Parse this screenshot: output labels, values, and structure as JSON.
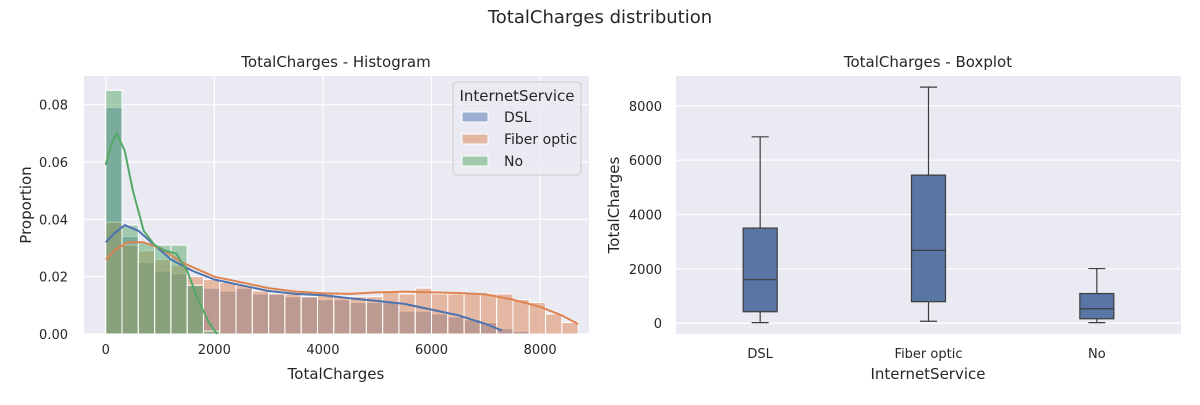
{
  "figure": {
    "title": "TotalCharges distribution"
  },
  "chart_data": [
    {
      "type": "histogram",
      "title": "TotalCharges - Histogram",
      "xlabel": "TotalCharges",
      "ylabel": "Proportion",
      "xlim": [
        -400,
        8900
      ],
      "ylim": [
        0,
        0.09
      ],
      "xticks": [
        0,
        2000,
        4000,
        6000,
        8000
      ],
      "yticks": [
        0.0,
        0.02,
        0.04,
        0.06,
        0.08
      ],
      "ytick_labels": [
        "0.00",
        "0.02",
        "0.04",
        "0.06",
        "0.08"
      ],
      "grid": true,
      "legend": {
        "title": "InternetService",
        "placement": "top-right",
        "entries": [
          "DSL",
          "Fiber optic",
          "No"
        ]
      },
      "bin_edges": [
        0,
        300,
        600,
        900,
        1200,
        1500,
        1800,
        2100,
        2400,
        2700,
        3000,
        3300,
        3600,
        3900,
        4200,
        4500,
        4800,
        5100,
        5400,
        5700,
        6000,
        6300,
        6600,
        6900,
        7200,
        7500,
        7800,
        8100,
        8400,
        8700
      ],
      "series": [
        {
          "name": "DSL",
          "color": "#4c72b0",
          "values": [
            0.079,
            0.034,
            0.025,
            0.022,
            0.021,
            0.017,
            0.016,
            0.015,
            0.016,
            0.014,
            0.014,
            0.013,
            0.013,
            0.012,
            0.012,
            0.011,
            0.011,
            0.011,
            0.008,
            0.008,
            0.007,
            0.006,
            0.005,
            0.004,
            0.002,
            0.001,
            0,
            0,
            0
          ],
          "kde": [
            [
              0,
              0.032
            ],
            [
              150,
              0.035
            ],
            [
              350,
              0.038
            ],
            [
              600,
              0.036
            ],
            [
              900,
              0.031
            ],
            [
              1200,
              0.026
            ],
            [
              1600,
              0.022
            ],
            [
              2000,
              0.019
            ],
            [
              2500,
              0.017
            ],
            [
              3000,
              0.015
            ],
            [
              3500,
              0.014
            ],
            [
              4000,
              0.0135
            ],
            [
              4500,
              0.0125
            ],
            [
              5000,
              0.0115
            ],
            [
              5500,
              0.0105
            ],
            [
              6000,
              0.0085
            ],
            [
              6500,
              0.0065
            ],
            [
              7000,
              0.0035
            ],
            [
              7300,
              0.0012
            ]
          ]
        },
        {
          "name": "Fiber optic",
          "color": "#dd8452",
          "values": [
            0.039,
            0.031,
            0.029,
            0.026,
            0.024,
            0.02,
            0.019,
            0.018,
            0.017,
            0.015,
            0.014,
            0.014,
            0.013,
            0.014,
            0.013,
            0.013,
            0.013,
            0.015,
            0.014,
            0.016,
            0.014,
            0.014,
            0.014,
            0.014,
            0.014,
            0.012,
            0.011,
            0.007,
            0.004
          ],
          "kde": [
            [
              0,
              0.026
            ],
            [
              150,
              0.029
            ],
            [
              400,
              0.032
            ],
            [
              700,
              0.032
            ],
            [
              1000,
              0.03
            ],
            [
              1400,
              0.025
            ],
            [
              2000,
              0.02
            ],
            [
              2500,
              0.018
            ],
            [
              3000,
              0.016
            ],
            [
              3500,
              0.0148
            ],
            [
              4000,
              0.0142
            ],
            [
              4500,
              0.014
            ],
            [
              5000,
              0.0145
            ],
            [
              5500,
              0.0148
            ],
            [
              6000,
              0.0145
            ],
            [
              6500,
              0.0143
            ],
            [
              7000,
              0.0138
            ],
            [
              7500,
              0.012
            ],
            [
              8000,
              0.0095
            ],
            [
              8400,
              0.0065
            ],
            [
              8700,
              0.0035
            ]
          ]
        },
        {
          "name": "No",
          "color": "#55a868",
          "values": [
            0.085,
            0.038,
            0.032,
            0.031,
            0.031,
            0.017,
            0.001,
            0,
            0,
            0,
            0,
            0,
            0,
            0,
            0,
            0,
            0,
            0,
            0,
            0,
            0,
            0,
            0,
            0,
            0,
            0,
            0,
            0,
            0
          ],
          "kde": [
            [
              0,
              0.059
            ],
            [
              100,
              0.066
            ],
            [
              200,
              0.07
            ],
            [
              350,
              0.064
            ],
            [
              500,
              0.05
            ],
            [
              700,
              0.036
            ],
            [
              900,
              0.031
            ],
            [
              1100,
              0.029
            ],
            [
              1300,
              0.028
            ],
            [
              1500,
              0.022
            ],
            [
              1700,
              0.012
            ],
            [
              1900,
              0.004
            ],
            [
              2050,
              0.0
            ]
          ]
        }
      ]
    },
    {
      "type": "boxplot",
      "title": "TotalCharges - Boxplot",
      "xlabel": "InternetService",
      "ylabel": "TotalCharges",
      "ylim": [
        -400,
        9100
      ],
      "yticks": [
        0,
        2000,
        4000,
        6000,
        8000
      ],
      "grid": true,
      "categories": [
        "DSL",
        "Fiber optic",
        "No"
      ],
      "color": "#5875a4",
      "boxes": [
        {
          "category": "DSL",
          "min": 20,
          "q1": 420,
          "median": 1600,
          "q3": 3500,
          "max": 6860
        },
        {
          "category": "Fiber optic",
          "min": 70,
          "q1": 790,
          "median": 2680,
          "q3": 5450,
          "max": 8690
        },
        {
          "category": "No",
          "min": 20,
          "q1": 160,
          "median": 530,
          "q3": 1090,
          "max": 2010
        }
      ]
    }
  ]
}
